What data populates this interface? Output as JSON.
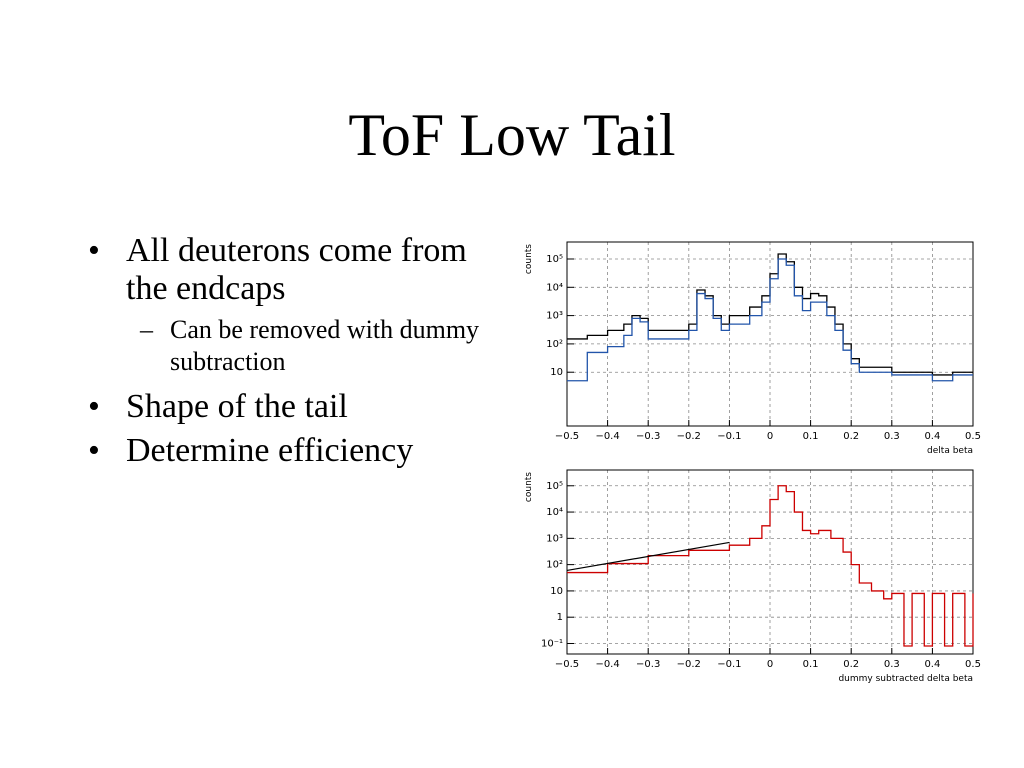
{
  "slide": {
    "title": "ToF Low Tail",
    "bullets": [
      {
        "text": "All deuterons come from the endcaps",
        "sub": [
          "Can be removed with dummy subtraction"
        ]
      },
      {
        "text": "Shape of the tail",
        "sub": []
      },
      {
        "text": "Determine efficiency",
        "sub": []
      }
    ]
  },
  "chart_data": [
    {
      "type": "line",
      "xlabel": "delta beta",
      "ylabel": "counts",
      "xlim": [
        -0.5,
        0.5
      ],
      "ylim_log10": [
        -0.9,
        5.6
      ],
      "yscale": "log",
      "grid": true,
      "xticks": [
        "−0.5",
        "−0.4",
        "−0.3",
        "−0.2",
        "−0.1",
        "0",
        "0.1",
        "0.2",
        "0.3",
        "0.4",
        "0.5"
      ],
      "yticks": [
        {
          "value": 10,
          "label": "10"
        },
        {
          "value": 100,
          "label": "10²"
        },
        {
          "value": 1000,
          "label": "10³"
        },
        {
          "value": 10000,
          "label": "10⁴"
        },
        {
          "value": 100000,
          "label": "10⁵"
        }
      ],
      "x": [
        -0.5,
        -0.45,
        -0.4,
        -0.36,
        -0.34,
        -0.32,
        -0.3,
        -0.25,
        -0.2,
        -0.18,
        -0.16,
        -0.14,
        -0.12,
        -0.1,
        -0.05,
        -0.02,
        0,
        0.02,
        0.04,
        0.06,
        0.08,
        0.1,
        0.12,
        0.14,
        0.16,
        0.18,
        0.2,
        0.22,
        0.25,
        0.3,
        0.35,
        0.4,
        0.45,
        0.5
      ],
      "series": [
        {
          "color": "#000000",
          "values": [
            150,
            200,
            300,
            500,
            1000,
            800,
            300,
            300,
            500,
            8000,
            5000,
            1000,
            500,
            1000,
            2000,
            5000,
            30000,
            150000,
            80000,
            10000,
            4000,
            6000,
            5000,
            2000,
            500,
            100,
            30,
            15,
            15,
            10,
            10,
            8,
            10,
            10
          ]
        },
        {
          "color": "#2255aa",
          "values": [
            5,
            50,
            80,
            200,
            800,
            600,
            150,
            150,
            300,
            6000,
            4000,
            800,
            300,
            500,
            1000,
            3000,
            20000,
            100000,
            60000,
            5000,
            1500,
            3000,
            3000,
            1000,
            300,
            60,
            20,
            10,
            10,
            8,
            8,
            5,
            8,
            8
          ]
        }
      ]
    },
    {
      "type": "line",
      "xlabel": "dummy subtracted delta beta",
      "ylabel": "counts",
      "xlim": [
        -0.5,
        0.5
      ],
      "ylim_log10": [
        -1.4,
        5.6
      ],
      "yscale": "log",
      "grid": true,
      "xticks": [
        "−0.5",
        "−0.4",
        "−0.3",
        "−0.2",
        "−0.1",
        "0",
        "0.1",
        "0.2",
        "0.3",
        "0.4",
        "0.5"
      ],
      "yticks": [
        {
          "value": 0.1,
          "label": "10⁻¹"
        },
        {
          "value": 1,
          "label": "1"
        },
        {
          "value": 10,
          "label": "10"
        },
        {
          "value": 100,
          "label": "10²"
        },
        {
          "value": 1000,
          "label": "10³"
        },
        {
          "value": 10000,
          "label": "10⁴"
        },
        {
          "value": 100000,
          "label": "10⁵"
        }
      ],
      "x": [
        -0.5,
        -0.4,
        -0.3,
        -0.2,
        -0.1,
        -0.05,
        -0.02,
        0,
        0.02,
        0.04,
        0.06,
        0.08,
        0.1,
        0.12,
        0.15,
        0.18,
        0.2,
        0.22,
        0.25,
        0.28,
        0.3,
        0.33,
        0.35,
        0.38,
        0.4,
        0.43,
        0.45,
        0.48,
        0.5
      ],
      "series": [
        {
          "color": "#cc0000",
          "values": [
            50,
            110,
            220,
            350,
            550,
            1000,
            3000,
            30000,
            100000,
            60000,
            10000,
            2000,
            1500,
            2000,
            1000,
            300,
            100,
            20,
            10,
            5,
            8,
            0.08,
            8,
            0.08,
            8,
            0.08,
            8,
            0.08,
            8
          ]
        }
      ],
      "fit": {
        "color": "#000000",
        "x": [
          -0.5,
          -0.1
        ],
        "values": [
          60,
          700
        ]
      }
    }
  ]
}
